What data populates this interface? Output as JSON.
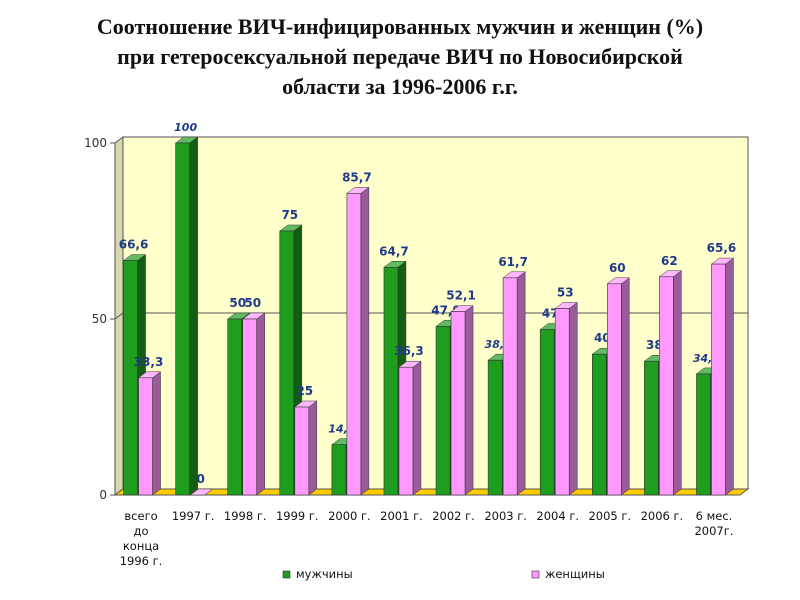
{
  "title": {
    "line1": "Соотношение ВИЧ-инфицированных мужчин и женщин (%)",
    "line2": "при гетеросексуальной передаче ВИЧ по Новосибирской",
    "line3": "области за 1996-2006 г.г."
  },
  "colors": {
    "men": "#1f9d1f",
    "women": "#ff99ff",
    "plot_bg": "#ffffcc",
    "floor": "#ffcc00"
  },
  "chart_data": {
    "type": "bar",
    "categories": [
      [
        "всего",
        "до",
        "конца",
        "1996 г."
      ],
      [
        "1997 г."
      ],
      [
        "1998 г."
      ],
      [
        "1999 г."
      ],
      [
        "2000 г."
      ],
      [
        "2001 г."
      ],
      [
        "2002 г."
      ],
      [
        "2003 г."
      ],
      [
        "2004 г."
      ],
      [
        "2005 г."
      ],
      [
        "2006 г."
      ],
      [
        "6 мес.",
        "2007г."
      ]
    ],
    "series": [
      {
        "name": "мужчины",
        "values": [
          66.6,
          100,
          50,
          75,
          14.3,
          64.7,
          47.9,
          38.3,
          47,
          40,
          38,
          34.4
        ],
        "labels": [
          "66,6",
          "100",
          "50",
          "75",
          "14,3",
          "64,7",
          "47,9",
          "38,3",
          "47",
          "40",
          "38",
          "34,4"
        ]
      },
      {
        "name": "женщины",
        "values": [
          33.3,
          0,
          50,
          25,
          85.7,
          36.3,
          52.1,
          61.7,
          53,
          60,
          62,
          65.6
        ],
        "labels": [
          "33,3",
          "0",
          "50",
          "25",
          "85,7",
          "36,3",
          "52,1",
          "61,7",
          "53",
          "60",
          "62",
          "65,6"
        ]
      }
    ],
    "ylim": [
      0,
      100
    ],
    "yticks": [
      "0",
      "50",
      "100"
    ],
    "gridlines": [
      50
    ],
    "legend_position": "bottom"
  }
}
